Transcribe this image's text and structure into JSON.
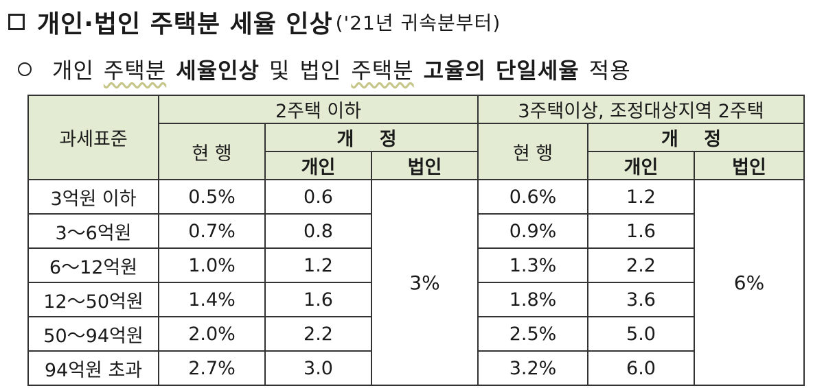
{
  "heading1": {
    "main": "개인·법인 주택분 세율 인상",
    "sub": "('21년 귀속분부터)"
  },
  "heading2": {
    "parts": [
      "개인",
      "주택분",
      "세율인상",
      "및",
      "법인",
      "주택분",
      "고율의",
      "단일세율",
      "적용"
    ]
  },
  "table": {
    "header": {
      "base_label": "과세표준",
      "group1_label": "2주택 이하",
      "group2_label": "3주택이상, 조정대상지역 2주택",
      "current_label": "현  행",
      "revised_label": "개  정",
      "individual_label": "개인",
      "corporate_label": "법인"
    },
    "rows": [
      {
        "base": "3억원 이하",
        "g1_current": "0.5%",
        "g1_individual": "0.6",
        "g2_current": "0.6%",
        "g2_individual": "1.2"
      },
      {
        "base": "3～6억원",
        "g1_current": "0.7%",
        "g1_individual": "0.8",
        "g2_current": "0.9%",
        "g2_individual": "1.6"
      },
      {
        "base": "6～12억원",
        "g1_current": "1.0%",
        "g1_individual": "1.2",
        "g2_current": "1.3%",
        "g2_individual": "2.2"
      },
      {
        "base": "12～50억원",
        "g1_current": "1.4%",
        "g1_individual": "1.6",
        "g2_current": "1.8%",
        "g2_individual": "3.6"
      },
      {
        "base": "50～94억원",
        "g1_current": "2.0%",
        "g1_individual": "2.2",
        "g2_current": "2.5%",
        "g2_individual": "5.0"
      },
      {
        "base": "94억원 초과",
        "g1_current": "2.7%",
        "g1_individual": "3.0",
        "g2_current": "3.2%",
        "g2_individual": "6.0"
      }
    ],
    "g1_corporate": "3%",
    "g2_corporate": "6%"
  }
}
